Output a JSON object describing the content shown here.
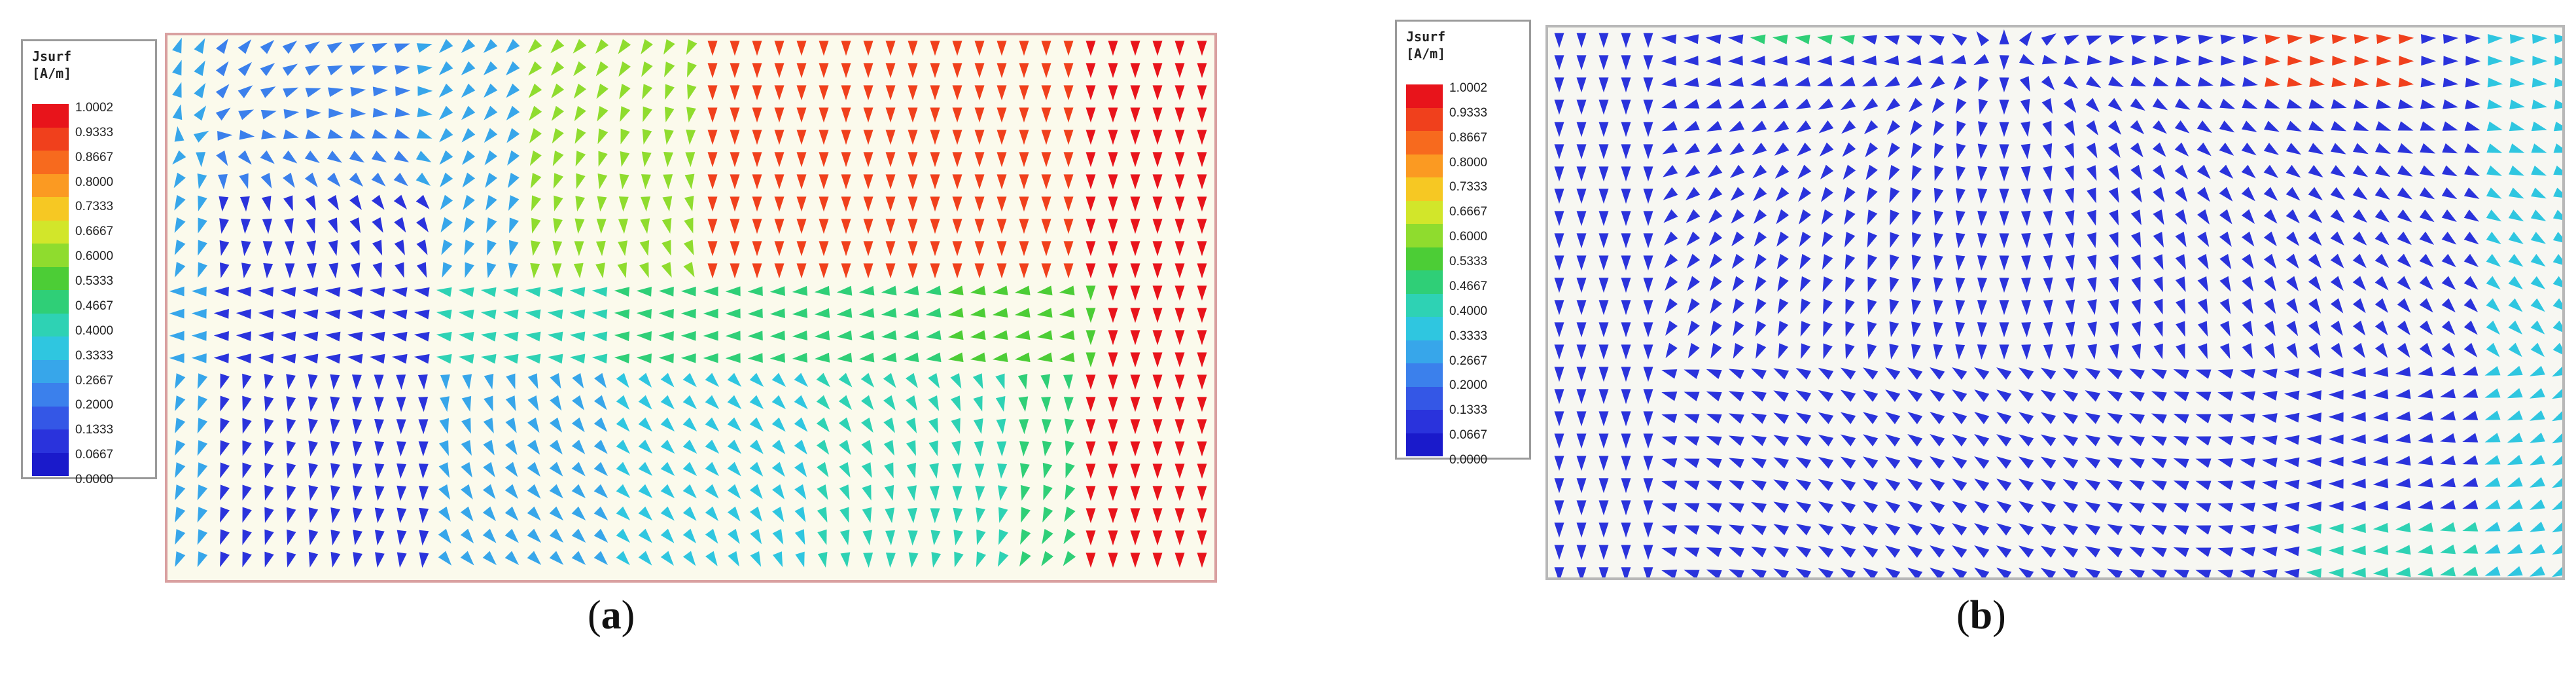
{
  "panels": [
    {
      "id": "a",
      "caption_letter": "a",
      "legend": {
        "title_line1": "Jsurf",
        "title_line2": "[A/m]",
        "ticks": [
          "1.0002",
          "0.9333",
          "0.8667",
          "0.8000",
          "0.7333",
          "0.6667",
          "0.6000",
          "0.5333",
          "0.4667",
          "0.4000",
          "0.3333",
          "0.2667",
          "0.2000",
          "0.1333",
          "0.0667",
          "0.0000"
        ]
      }
    },
    {
      "id": "b",
      "caption_letter": "b",
      "legend": {
        "title_line1": "Jsurf",
        "title_line2": "[A/m]",
        "ticks": [
          "1.0002",
          "0.9333",
          "0.8667",
          "0.8000",
          "0.7333",
          "0.6667",
          "0.6000",
          "0.5333",
          "0.4667",
          "0.4000",
          "0.3333",
          "0.2667",
          "0.2000",
          "0.1333",
          "0.0667",
          "0.0000"
        ]
      }
    }
  ],
  "colorscale": [
    "#e8141b",
    "#f0401c",
    "#f76a1e",
    "#fb9a22",
    "#f6c823",
    "#d2e62a",
    "#8fdc2e",
    "#4ccd36",
    "#2fcf77",
    "#2ed2b4",
    "#2fc6e0",
    "#37a6ea",
    "#3b80ec",
    "#3457e6",
    "#2a33dc",
    "#1a1acb"
  ]
}
